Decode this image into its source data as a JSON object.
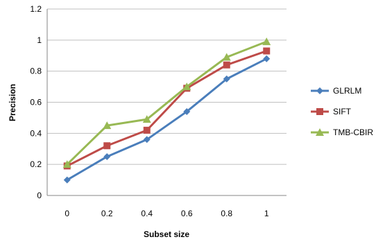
{
  "chart_data": {
    "type": "line",
    "x": [
      0,
      0.2,
      0.4,
      0.6,
      0.8,
      1
    ],
    "x_tick_labels": [
      "0",
      "0.2",
      "0.4",
      "0.6",
      "0.8",
      "1"
    ],
    "y_tick_labels": [
      "0",
      "0.2",
      "0.4",
      "0.6",
      "0.8",
      "1",
      "1.2"
    ],
    "ylim": [
      0,
      1.2
    ],
    "xlabel": "Subset size",
    "ylabel": "Precision",
    "grid": "horizontal",
    "legend_position": "right",
    "series": [
      {
        "name": "GLRLM",
        "color": "#4a7ebb",
        "marker": "diamond",
        "values": [
          0.1,
          0.25,
          0.36,
          0.54,
          0.75,
          0.88
        ]
      },
      {
        "name": "SIFT",
        "color": "#be4b48",
        "marker": "square",
        "values": [
          0.19,
          0.32,
          0.42,
          0.69,
          0.84,
          0.93
        ]
      },
      {
        "name": "TMB-CBIR",
        "color": "#98b954",
        "marker": "triangle",
        "values": [
          0.2,
          0.45,
          0.49,
          0.7,
          0.89,
          0.99
        ]
      }
    ]
  }
}
